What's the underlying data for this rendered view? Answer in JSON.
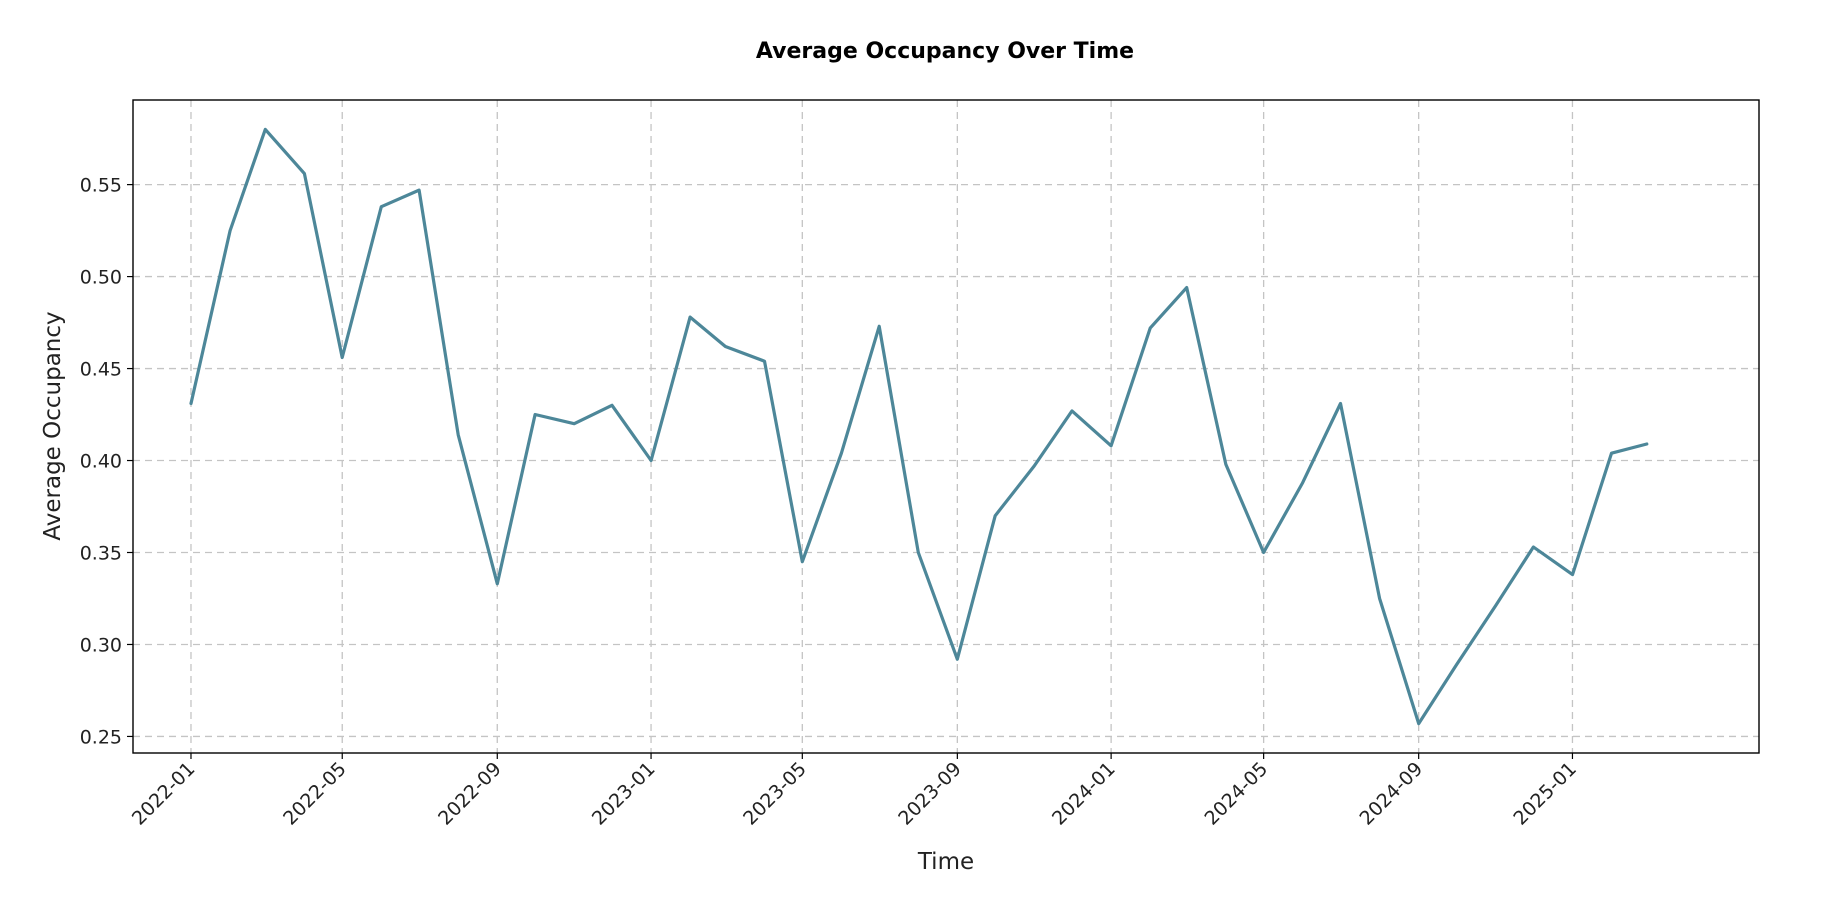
{
  "chart_data": {
    "type": "line",
    "title": "Average Occupancy Over Time",
    "xlabel": "Time",
    "ylabel": "Average Occupancy",
    "x_axis_type": "date",
    "xlim": [
      "2021-11-16",
      "2025-05-29"
    ],
    "ylim": [
      0.241,
      0.596
    ],
    "grid": true,
    "line_color": "#4d8799",
    "x_ticks": [
      "2022-01",
      "2022-05",
      "2022-09",
      "2023-01",
      "2023-05",
      "2023-09",
      "2024-01",
      "2024-05",
      "2024-09",
      "2025-01"
    ],
    "y_ticks": [
      0.25,
      0.3,
      0.35,
      0.4,
      0.45,
      0.5,
      0.55
    ],
    "y_tick_labels": [
      "0.25",
      "0.30",
      "0.35",
      "0.40",
      "0.45",
      "0.50",
      "0.55"
    ],
    "series": [
      {
        "x": [
          "2022-01",
          "2022-02",
          "2022-03",
          "2022-04",
          "2022-05",
          "2022-06",
          "2022-07",
          "2022-08",
          "2022-09",
          "2022-10",
          "2022-11",
          "2022-12",
          "2023-01",
          "2023-02",
          "2023-03",
          "2023-04",
          "2023-05",
          "2023-06",
          "2023-07",
          "2023-08",
          "2023-09",
          "2023-10",
          "2023-11",
          "2023-12",
          "2024-01",
          "2024-02",
          "2024-03",
          "2024-04",
          "2024-05",
          "2024-06",
          "2024-07",
          "2024-08",
          "2024-09",
          "2024-10",
          "2024-11",
          "2024-12",
          "2025-01",
          "2025-02",
          "2025-03"
        ],
        "values": [
          0.431,
          0.525,
          0.58,
          0.556,
          0.456,
          0.538,
          0.547,
          0.414,
          0.333,
          0.425,
          0.42,
          0.43,
          0.4,
          0.478,
          0.462,
          0.454,
          0.345,
          0.404,
          0.473,
          0.35,
          0.292,
          0.37,
          0.397,
          0.427,
          0.408,
          0.472,
          0.494,
          0.398,
          0.35,
          0.388,
          0.431,
          0.325,
          0.257,
          0.289,
          0.321,
          0.353,
          0.338,
          0.404,
          0.409
        ]
      }
    ]
  }
}
